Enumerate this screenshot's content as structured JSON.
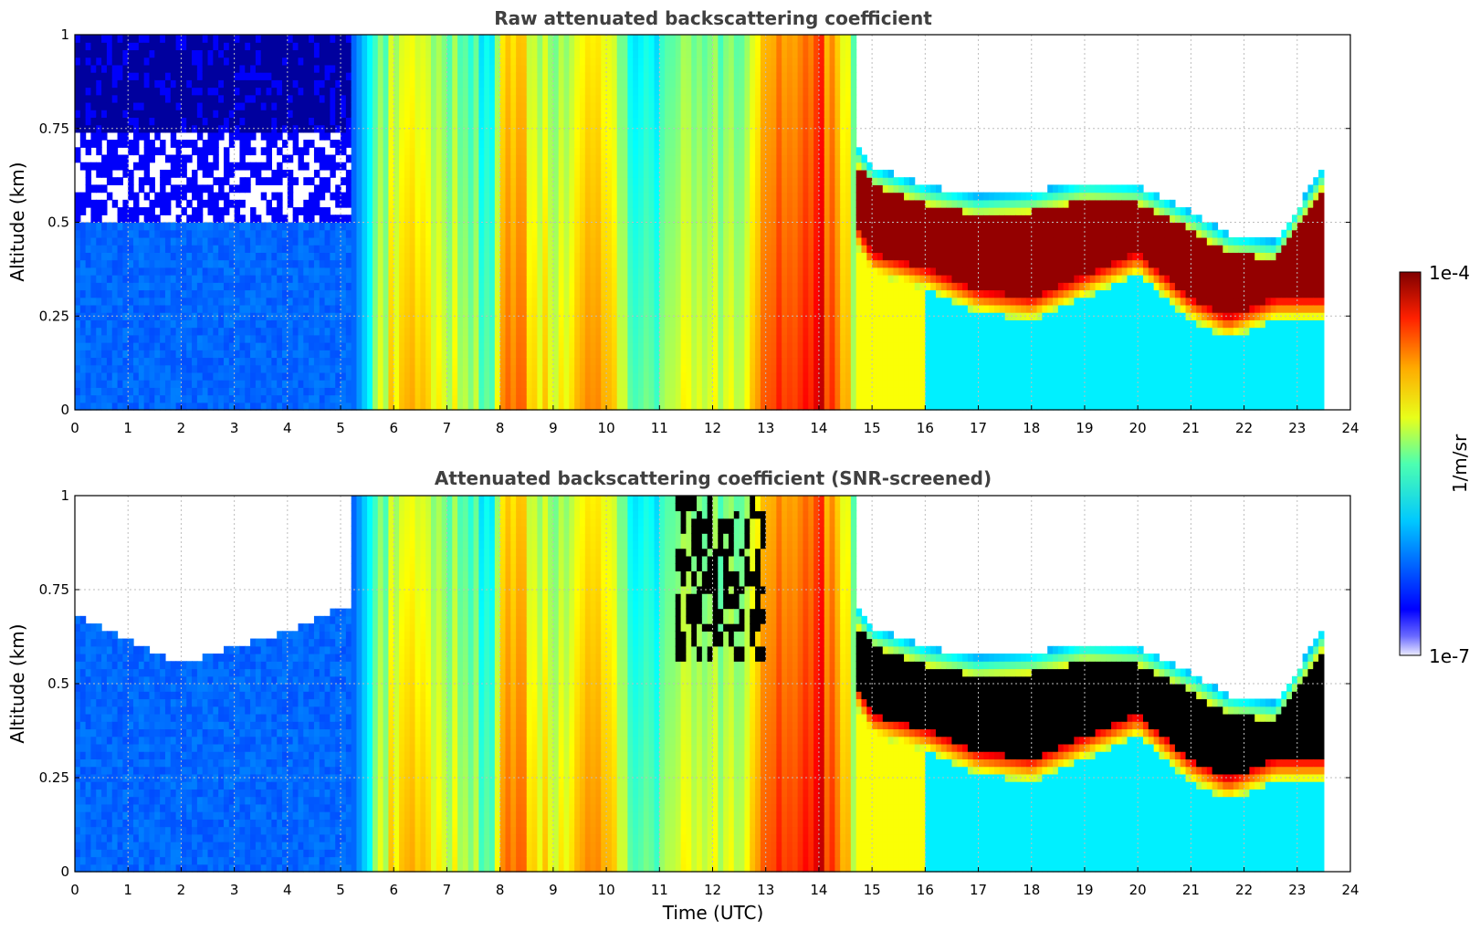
{
  "chart_data": [
    {
      "type": "heatmap",
      "title": "Raw attenuated backscattering coefficient",
      "xlabel": "",
      "ylabel": "Altitude (km)",
      "xlim": [
        0,
        24
      ],
      "ylim": [
        0,
        1
      ],
      "xticks": [
        "0",
        "1",
        "2",
        "3",
        "4",
        "5",
        "6",
        "7",
        "8",
        "9",
        "10",
        "11",
        "12",
        "13",
        "14",
        "15",
        "16",
        "17",
        "18",
        "19",
        "20",
        "21",
        "22",
        "23",
        "24"
      ],
      "yticks": [
        "0",
        "0.25",
        "0.5",
        "0.75",
        "1"
      ],
      "grid": true,
      "variant": "raw",
      "boundary_layer_top_km": [
        [
          0,
          0.5
        ],
        [
          5,
          0.5
        ]
      ],
      "cloud_base_km": [
        [
          14.7,
          0.5
        ],
        [
          15,
          0.42
        ],
        [
          16,
          0.38
        ],
        [
          17,
          0.32
        ],
        [
          18,
          0.3
        ],
        [
          19,
          0.36
        ],
        [
          20,
          0.42
        ],
        [
          21,
          0.3
        ],
        [
          21.7,
          0.25
        ],
        [
          22.6,
          0.3
        ],
        [
          23.5,
          0.3
        ]
      ],
      "cloud_top_km": [
        [
          14.7,
          0.66
        ],
        [
          15,
          0.6
        ],
        [
          16,
          0.55
        ],
        [
          17,
          0.52
        ],
        [
          18,
          0.53
        ],
        [
          19,
          0.56
        ],
        [
          20,
          0.55
        ],
        [
          21,
          0.48
        ],
        [
          21.7,
          0.42
        ],
        [
          22.6,
          0.4
        ],
        [
          23.5,
          0.6
        ]
      ]
    },
    {
      "type": "heatmap",
      "title": "Attenuated backscattering coefficient (SNR-screened)",
      "xlabel": "Time (UTC)",
      "ylabel": "Altitude (km)",
      "xlim": [
        0,
        24
      ],
      "ylim": [
        0,
        1
      ],
      "xticks": [
        "0",
        "1",
        "2",
        "3",
        "4",
        "5",
        "6",
        "7",
        "8",
        "9",
        "10",
        "11",
        "12",
        "13",
        "14",
        "15",
        "16",
        "17",
        "18",
        "19",
        "20",
        "21",
        "22",
        "23",
        "24"
      ],
      "yticks": [
        "0",
        "0.25",
        "0.5",
        "0.75",
        "1"
      ],
      "grid": true,
      "variant": "screened",
      "boundary_layer_top_km": [
        [
          0,
          0.68
        ],
        [
          1,
          0.62
        ],
        [
          2,
          0.55
        ],
        [
          3,
          0.6
        ],
        [
          4,
          0.64
        ],
        [
          5,
          0.7
        ]
      ],
      "cloud_base_km": [
        [
          14.7,
          0.5
        ],
        [
          15,
          0.42
        ],
        [
          16,
          0.38
        ],
        [
          17,
          0.32
        ],
        [
          18,
          0.3
        ],
        [
          19,
          0.36
        ],
        [
          20,
          0.42
        ],
        [
          21,
          0.3
        ],
        [
          21.7,
          0.25
        ],
        [
          22.6,
          0.3
        ],
        [
          23.5,
          0.3
        ]
      ],
      "cloud_top_km": [
        [
          14.7,
          0.66
        ],
        [
          15,
          0.6
        ],
        [
          16,
          0.55
        ],
        [
          17,
          0.52
        ],
        [
          18,
          0.53
        ],
        [
          19,
          0.56
        ],
        [
          20,
          0.55
        ],
        [
          21,
          0.48
        ],
        [
          21.7,
          0.42
        ],
        [
          22.6,
          0.4
        ],
        [
          23.5,
          0.6
        ]
      ]
    }
  ],
  "colorbar": {
    "label": "1/m/sr",
    "max_label": "1e-4",
    "min_label": "1e-7",
    "min": 1e-07,
    "max": 0.0001,
    "scale": "log",
    "colormap": "jet"
  },
  "colors": {
    "title": "#404040",
    "missing": "#ffffff",
    "saturated_screened": "#000000"
  }
}
